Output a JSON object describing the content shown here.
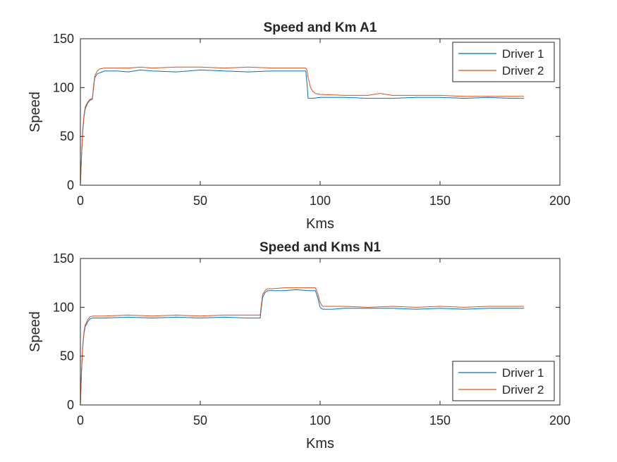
{
  "colors": {
    "driver1": "#0072BD",
    "driver2": "#D95319",
    "axis": "#262626",
    "background": "#ffffff"
  },
  "chart_data": [
    {
      "type": "line",
      "title": "Speed and Km A1",
      "xlabel": "Kms",
      "ylabel": "Speed",
      "xlim": [
        0,
        200
      ],
      "ylim": [
        0,
        150
      ],
      "xticks": [
        0,
        50,
        100,
        150,
        200
      ],
      "yticks": [
        0,
        50,
        100,
        150
      ],
      "grid": false,
      "legend": "top-right",
      "series": [
        {
          "name": "Driver 1",
          "x": [
            0,
            0.5,
            1,
            1.5,
            2,
            3,
            4,
            5,
            5.5,
            6,
            7,
            8,
            10,
            15,
            20,
            25,
            30,
            40,
            50,
            60,
            70,
            80,
            90,
            93,
            94,
            94.5,
            95,
            97,
            100,
            110,
            120,
            130,
            140,
            150,
            160,
            170,
            180,
            185
          ],
          "y": [
            0,
            30,
            55,
            70,
            78,
            84,
            87,
            88,
            100,
            110,
            114,
            115,
            117,
            117,
            116,
            118,
            117,
            116,
            118,
            117,
            116,
            117,
            117,
            117,
            117,
            105,
            89,
            89,
            90,
            90,
            89,
            89,
            90,
            90,
            89,
            90,
            89,
            89
          ]
        },
        {
          "name": "Driver 2",
          "x": [
            0,
            0.5,
            1,
            1.5,
            2,
            3,
            4,
            5,
            5.5,
            6,
            7,
            8,
            10,
            15,
            20,
            25,
            30,
            40,
            50,
            60,
            70,
            80,
            90,
            93,
            94,
            94.5,
            95,
            96,
            97,
            98,
            100,
            110,
            120,
            125,
            130,
            140,
            150,
            160,
            170,
            180,
            185
          ],
          "y": [
            0,
            32,
            58,
            72,
            80,
            85,
            88,
            89,
            102,
            112,
            117,
            119,
            120,
            120,
            120,
            121,
            120,
            121,
            121,
            120,
            121,
            120,
            120,
            120,
            120,
            118,
            110,
            100,
            96,
            94,
            93,
            92,
            92,
            94,
            92,
            92,
            92,
            91,
            91,
            91,
            91
          ]
        }
      ]
    },
    {
      "type": "line",
      "title": "Speed and Kms N1",
      "xlabel": "Kms",
      "ylabel": "Speed",
      "xlim": [
        0,
        200
      ],
      "ylim": [
        0,
        150
      ],
      "xticks": [
        0,
        50,
        100,
        150,
        200
      ],
      "yticks": [
        0,
        50,
        100,
        150
      ],
      "grid": false,
      "legend": "bottom-right",
      "series": [
        {
          "name": "Driver 1",
          "x": [
            0,
            0.5,
            1,
            1.5,
            2,
            3,
            4,
            5,
            10,
            20,
            30,
            40,
            50,
            60,
            70,
            75,
            75.5,
            76,
            77,
            78,
            80,
            85,
            90,
            95,
            98,
            99,
            100,
            101,
            105,
            110,
            120,
            130,
            140,
            150,
            160,
            170,
            180,
            185
          ],
          "y": [
            0,
            35,
            60,
            73,
            80,
            85,
            88,
            89,
            89,
            90,
            89,
            90,
            89,
            90,
            89,
            89,
            100,
            110,
            115,
            117,
            117,
            117,
            118,
            117,
            117,
            110,
            100,
            98,
            98,
            99,
            99,
            99,
            98,
            99,
            98,
            99,
            99,
            99
          ]
        },
        {
          "name": "Driver 2",
          "x": [
            0,
            0.5,
            1,
            1.5,
            2,
            3,
            4,
            5,
            10,
            20,
            30,
            40,
            50,
            60,
            70,
            75,
            75.5,
            76,
            77,
            78,
            80,
            85,
            90,
            95,
            98,
            99,
            100,
            101,
            105,
            110,
            120,
            130,
            140,
            150,
            160,
            170,
            180,
            185
          ],
          "y": [
            0,
            37,
            62,
            75,
            82,
            87,
            90,
            91,
            91,
            92,
            91,
            92,
            91,
            92,
            92,
            92,
            103,
            113,
            117,
            119,
            119,
            120,
            120,
            120,
            120,
            114,
            105,
            101,
            101,
            101,
            100,
            101,
            100,
            101,
            100,
            101,
            101,
            101
          ]
        }
      ]
    }
  ]
}
